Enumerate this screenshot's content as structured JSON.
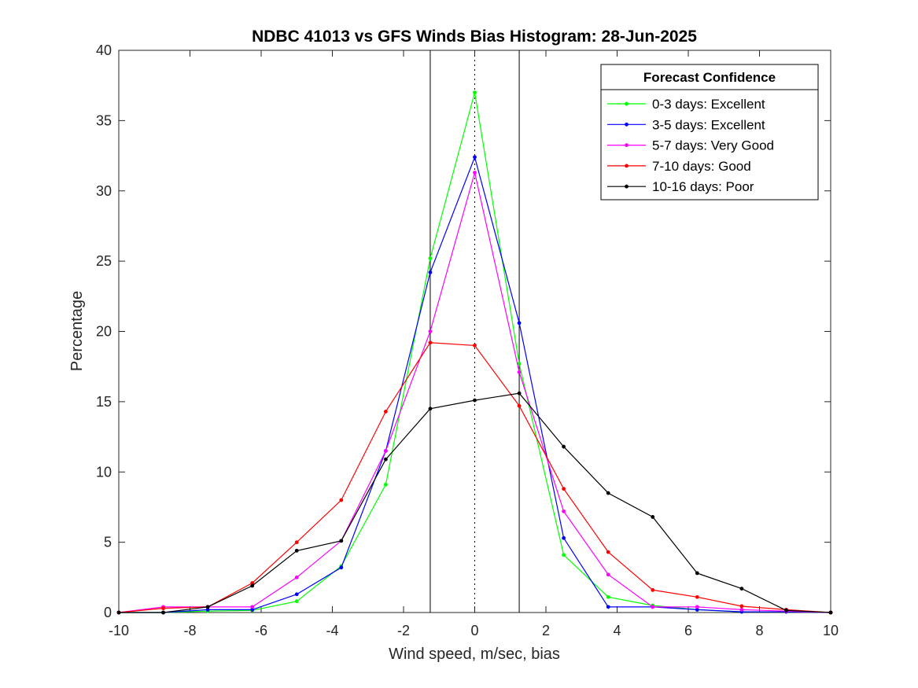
{
  "chart_data": {
    "type": "line",
    "title": "NDBC 41013 vs GFS Winds Bias Histogram: 28-Jun-2025",
    "xlabel": "Wind speed, m/sec, bias",
    "ylabel": "Percentage",
    "xlim": [
      -10,
      10
    ],
    "ylim": [
      0,
      40
    ],
    "xticks": [
      -10,
      -8,
      -6,
      -4,
      -2,
      0,
      2,
      4,
      6,
      8,
      10
    ],
    "yticks": [
      0,
      5,
      10,
      15,
      20,
      25,
      30,
      35,
      40
    ],
    "grid": false,
    "reference_lines": {
      "solid": [
        -1.25,
        1.25
      ],
      "dotted": [
        0
      ]
    },
    "legend": {
      "title": "Forecast Confidence",
      "position": "top-right"
    },
    "x": [
      -10,
      -8.75,
      -7.5,
      -6.25,
      -5,
      -3.75,
      -2.5,
      -1.25,
      0,
      1.25,
      2.5,
      3.75,
      5,
      6.25,
      7.5,
      8.75,
      10
    ],
    "series": [
      {
        "name": "0-3 days: Excellent",
        "color": "#00ff00",
        "values": [
          0,
          0,
          0.1,
          0.15,
          0.8,
          3.3,
          9.1,
          25.2,
          37.0,
          17.7,
          4.1,
          1.1,
          0.5,
          0.2,
          0.05,
          0.05,
          0
        ]
      },
      {
        "name": "3-5 days: Excellent",
        "color": "#0000ff",
        "values": [
          0,
          0,
          0.2,
          0.2,
          1.3,
          3.2,
          11.5,
          24.2,
          32.4,
          20.6,
          5.3,
          0.4,
          0.4,
          0.2,
          0.05,
          0.05,
          0
        ]
      },
      {
        "name": "5-7 days: Very Good",
        "color": "#ff00ff",
        "values": [
          0,
          0.4,
          0.4,
          0.4,
          2.5,
          5.1,
          11.5,
          20.0,
          31.3,
          17.1,
          7.2,
          2.7,
          0.4,
          0.4,
          0.2,
          0.1,
          0
        ]
      },
      {
        "name": "7-10 days: Good",
        "color": "#ff0000",
        "values": [
          0,
          0.3,
          0.4,
          2.1,
          5.0,
          8.0,
          14.3,
          19.2,
          19.0,
          14.7,
          8.8,
          4.3,
          1.6,
          1.1,
          0.45,
          0.2,
          0
        ]
      },
      {
        "name": "10-16 days: Poor",
        "color": "#000000",
        "values": [
          0,
          0,
          0.4,
          1.9,
          4.4,
          5.1,
          10.9,
          14.5,
          15.1,
          15.6,
          11.8,
          8.5,
          6.8,
          2.8,
          1.7,
          0.15,
          0
        ]
      }
    ]
  }
}
